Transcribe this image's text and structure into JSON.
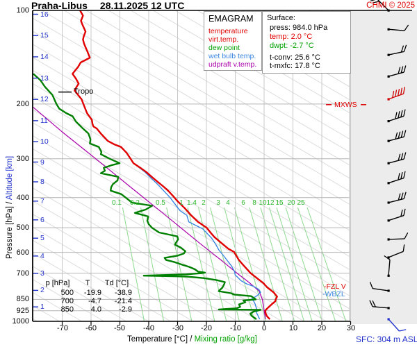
{
  "header": {
    "station": "Praha-Libus",
    "datetime": "28.11.2025 12 UTC",
    "copyright": "CHMI © 2025"
  },
  "legend": {
    "title": "EMAGRAM",
    "items": [
      {
        "label": "temperature",
        "color": "#e00000"
      },
      {
        "label": "virt.temp.",
        "color": "#e00000"
      },
      {
        "label": "dew point",
        "color": "#00a000"
      },
      {
        "label": "wet bulb temp.",
        "color": "#3a85e0"
      },
      {
        "label": "udpraft v.temp.",
        "color": "#aa00aa"
      }
    ]
  },
  "surface_panel": {
    "title": "Surface:",
    "press_label": "press:",
    "press_value": "984.0 hPa",
    "temp_label": "temp:",
    "temp_value": "2.0 °C",
    "dwpt_label": "dwpt:",
    "dwpt_value": "-2.7 °C",
    "tconv_label": "t-conv:",
    "tconv_value": "25.6 °C",
    "tmxfc_label": "t-mxfc:",
    "tmxfc_value": "17.8 °C"
  },
  "markers": {
    "tropo": "Tropo",
    "mxws": "MXWS",
    "fzl": "-FZL V",
    "wbzl": "-WBZL",
    "sfc": "SFC: 304 m ASL"
  },
  "table": {
    "headers": [
      "p [hPa]",
      "T",
      "Td [°C]"
    ],
    "rows": [
      [
        "500",
        "-19.9",
        "-38.9"
      ],
      [
        "700",
        "-4.7",
        "-21.4"
      ],
      [
        "850",
        "4.0",
        "-2.9"
      ]
    ]
  },
  "axes": {
    "x_label": "Temperature [°C]",
    "sep": "/",
    "x_label_green": "Mixing ratio [g/kg]",
    "y_label": "Pressure [hPa]",
    "y_label_blue": "Altitude [km]",
    "pressure_ticks": [
      100,
      200,
      300,
      400,
      500,
      600,
      700,
      850,
      925,
      1000
    ],
    "temp_ticks": [
      -70,
      -60,
      -50,
      -40,
      -30,
      -20,
      -10,
      0,
      10,
      20,
      30
    ],
    "altitude_ticks_km": [
      1,
      2,
      3,
      4,
      5,
      6,
      7,
      8,
      9,
      10,
      11,
      12,
      13,
      14,
      15,
      16
    ]
  },
  "chart_data": {
    "type": "line",
    "subtype": "emagram-sounding",
    "x_unit": "°C",
    "y_unit": "hPa",
    "y_scale": "log",
    "x_range_at_axis": [
      -80,
      30
    ],
    "pressure_range": [
      100,
      1000
    ],
    "tropopause_hpa": 183,
    "mxws_hpa": 201,
    "fzl_hpa": 752,
    "wbzl_hpa": 800,
    "mixing_ratio_lines_gkg": [
      0.1,
      0.2,
      0.5,
      1,
      1.4,
      2,
      3,
      4,
      6,
      8,
      10,
      12,
      15,
      20,
      25
    ],
    "series": [
      {
        "name": "temperature",
        "color": "#e00000",
        "width": 2.4,
        "points": [
          [
            100,
            -63.8
          ],
          [
            104,
            -62.8
          ],
          [
            108,
            -63.5
          ],
          [
            111,
            -63.0
          ],
          [
            117,
            -61.9
          ],
          [
            121,
            -62.5
          ],
          [
            124,
            -62.8
          ],
          [
            128,
            -62.4
          ],
          [
            132,
            -61.8
          ],
          [
            136,
            -61.2
          ],
          [
            142,
            -60.4
          ],
          [
            147,
            -63.6
          ],
          [
            152,
            -64.5
          ],
          [
            156,
            -65.5
          ],
          [
            160,
            -66.4
          ],
          [
            166,
            -65.2
          ],
          [
            172,
            -64.3
          ],
          [
            176,
            -65.0
          ],
          [
            181,
            -65.7
          ],
          [
            187,
            -64.5
          ],
          [
            193,
            -63.3
          ],
          [
            204,
            -62.3
          ],
          [
            214,
            -61.4
          ],
          [
            225,
            -59.7
          ],
          [
            232,
            -59.5
          ],
          [
            236,
            -59.2
          ],
          [
            240,
            -58.0
          ],
          [
            249,
            -56.6
          ],
          [
            263,
            -54.2
          ],
          [
            270,
            -51.8
          ],
          [
            275,
            -49.6
          ],
          [
            287,
            -47.7
          ],
          [
            298,
            -46.5
          ],
          [
            310,
            -45.3
          ],
          [
            321,
            -42.9
          ],
          [
            330,
            -41.0
          ],
          [
            344,
            -38.8
          ],
          [
            356,
            -36.9
          ],
          [
            368,
            -35.0
          ],
          [
            380,
            -33.3
          ],
          [
            395,
            -31.6
          ],
          [
            410,
            -30.1
          ],
          [
            432,
            -27.6
          ],
          [
            456,
            -25.3
          ],
          [
            479,
            -22.9
          ],
          [
            500,
            -19.9
          ],
          [
            518,
            -18.6
          ],
          [
            536,
            -17.2
          ],
          [
            560,
            -14.8
          ],
          [
            584,
            -12.4
          ],
          [
            598,
            -10.4
          ],
          [
            616,
            -9.6
          ],
          [
            634,
            -8.8
          ],
          [
            650,
            -7.8
          ],
          [
            666,
            -6.8
          ],
          [
            683,
            -5.7
          ],
          [
            700,
            -4.7
          ],
          [
            726,
            -2.5
          ],
          [
            753,
            -0.3
          ],
          [
            778,
            1.1
          ],
          [
            807,
            3.3
          ],
          [
            833,
            4.5
          ],
          [
            850,
            4.0
          ],
          [
            862,
            3.9
          ],
          [
            876,
            3.0
          ],
          [
            891,
            2.1
          ],
          [
            907,
            1.2
          ],
          [
            923,
            0.4
          ],
          [
            940,
            0.5
          ],
          [
            960,
            0.9
          ],
          [
            972,
            1.4
          ],
          [
            984,
            2.0
          ]
        ]
      },
      {
        "name": "dew_point",
        "color": "#008000",
        "width": 2.4,
        "points": [
          [
            160,
            -80
          ],
          [
            168,
            -77.5
          ],
          [
            176,
            -76
          ],
          [
            187,
            -73.4
          ],
          [
            200,
            -72
          ],
          [
            207,
            -71
          ],
          [
            214,
            -68.6
          ],
          [
            219,
            -66.4
          ],
          [
            228,
            -65.2
          ],
          [
            240,
            -62.8
          ],
          [
            249,
            -60.9
          ],
          [
            260,
            -60.2
          ],
          [
            268,
            -60.4
          ],
          [
            275,
            -57.3
          ],
          [
            285,
            -56.4
          ],
          [
            290,
            -56.6
          ],
          [
            300,
            -53.5
          ],
          [
            310,
            -50.1
          ],
          [
            315,
            -53
          ],
          [
            321,
            -55.6
          ],
          [
            328,
            -55.2
          ],
          [
            334,
            -56.6
          ],
          [
            343,
            -50.6
          ],
          [
            352,
            -50.8
          ],
          [
            362,
            -52.4
          ],
          [
            370,
            -53.0
          ],
          [
            380,
            -53.2
          ],
          [
            390,
            -49.5
          ],
          [
            400,
            -48.0
          ],
          [
            415,
            -45.8
          ],
          [
            425,
            -38.8
          ],
          [
            437,
            -41
          ],
          [
            448,
            -44.8
          ],
          [
            460,
            -40.2
          ],
          [
            475,
            -40.5
          ],
          [
            487,
            -40.0
          ],
          [
            500,
            -38.9
          ],
          [
            510,
            -37.5
          ],
          [
            518,
            -36.4
          ],
          [
            526,
            -33
          ],
          [
            533,
            -30.1
          ],
          [
            545,
            -29.8
          ],
          [
            556,
            -30.4
          ],
          [
            567,
            -30.9
          ],
          [
            580,
            -28.8
          ],
          [
            595,
            -27.3
          ],
          [
            605,
            -27.8
          ],
          [
            615,
            -30
          ],
          [
            625,
            -34.5
          ],
          [
            635,
            -34
          ],
          [
            645,
            -31
          ],
          [
            657,
            -28.5
          ],
          [
            668,
            -26
          ],
          [
            680,
            -24
          ],
          [
            692,
            -22.9
          ],
          [
            697,
            -20.5
          ],
          [
            700,
            -21.4
          ],
          [
            706,
            -27
          ],
          [
            713,
            -41.7
          ],
          [
            718,
            -27
          ],
          [
            726,
            -21
          ],
          [
            737,
            -16.5
          ],
          [
            748,
            -13.6
          ],
          [
            762,
            -13.9
          ],
          [
            780,
            -14.5
          ],
          [
            795,
            -15.5
          ],
          [
            800,
            -15.7
          ],
          [
            812,
            -11.5
          ],
          [
            820,
            -10.4
          ],
          [
            830,
            -4.5
          ],
          [
            850,
            -2.9
          ],
          [
            857,
            -7.2
          ],
          [
            868,
            -6.5
          ],
          [
            882,
            -8.7
          ],
          [
            898,
            -8.3
          ],
          [
            908,
            -9.5
          ],
          [
            916,
            -15.7
          ],
          [
            918,
            -1.2
          ],
          [
            930,
            -3.6
          ],
          [
            945,
            -4.8
          ],
          [
            962,
            -4.2
          ],
          [
            975,
            -3.3
          ],
          [
            984,
            -2.7
          ]
        ]
      },
      {
        "name": "wet_bulb",
        "color": "#3a85e0",
        "width": 1.4,
        "points": [
          [
            310,
            -45.3
          ],
          [
            330,
            -41.5
          ],
          [
            365,
            -36.6
          ],
          [
            400,
            -32.6
          ],
          [
            440,
            -29.2
          ],
          [
            456,
            -26.8
          ],
          [
            479,
            -26.1
          ],
          [
            504,
            -21.3
          ],
          [
            540,
            -18.2
          ],
          [
            565,
            -16.8
          ],
          [
            589,
            -15.7
          ],
          [
            628,
            -13.3
          ],
          [
            660,
            -11.5
          ],
          [
            690,
            -10.3
          ],
          [
            710,
            -10.0
          ],
          [
            721,
            -9.2
          ],
          [
            740,
            -8.0
          ],
          [
            758,
            -6.0
          ],
          [
            772,
            -3.6
          ],
          [
            790,
            -1.8
          ],
          [
            807,
            -1.2
          ],
          [
            827,
            -2.4
          ],
          [
            847,
            -4.3
          ],
          [
            862,
            -3.6
          ],
          [
            880,
            -3.1
          ],
          [
            900,
            -2.8
          ],
          [
            920,
            -2.4
          ],
          [
            940,
            -2.6
          ],
          [
            955,
            -2.2
          ],
          [
            970,
            -1.9
          ],
          [
            984,
            -1.5
          ]
        ]
      },
      {
        "name": "updraft_virt_temp",
        "color": "#aa00aa",
        "width": 1.2,
        "points": [
          [
            205,
            -80
          ],
          [
            246,
            -70
          ],
          [
            302,
            -58
          ],
          [
            370,
            -46.3
          ],
          [
            456,
            -34.2
          ],
          [
            560,
            -22.4
          ],
          [
            640,
            -14.5
          ],
          [
            700,
            -9.4
          ],
          [
            750,
            -5.2
          ],
          [
            800,
            -1.7
          ],
          [
            850,
            -0.6
          ],
          [
            900,
            -0.2
          ],
          [
            945,
            0.2
          ],
          [
            984,
            0.5
          ]
        ]
      }
    ],
    "winds": [
      {
        "p": 100,
        "angle": -135,
        "feathers": 2,
        "color": "#000000"
      },
      {
        "p": 115,
        "angle": 5,
        "feathers": 1,
        "color": "#000000"
      },
      {
        "p": 139,
        "angle": -12,
        "feathers": 2,
        "color": "#000000"
      },
      {
        "p": 163,
        "angle": -15,
        "feathers": 3,
        "color": "#000000"
      },
      {
        "p": 193,
        "angle": -20,
        "feathers": 5,
        "color": "#cc0000"
      },
      {
        "p": 227,
        "angle": -18,
        "feathers": 4,
        "color": "#000000"
      },
      {
        "p": 263,
        "angle": -15,
        "feathers": 4,
        "color": "#000000"
      },
      {
        "p": 310,
        "angle": -15,
        "feathers": 3,
        "color": "#000000"
      },
      {
        "p": 359,
        "angle": -18,
        "feathers": 3,
        "color": "#000000"
      },
      {
        "p": 415,
        "angle": -14,
        "feathers": 3,
        "color": "#000000"
      },
      {
        "p": 474,
        "angle": -18,
        "feathers": 2,
        "color": "#000000"
      },
      {
        "p": 545,
        "angle": -2,
        "feathers": 1,
        "color": "#000000"
      },
      {
        "p": 623,
        "angle": -22,
        "feathers": 1,
        "color": "#000000"
      },
      {
        "p": 713,
        "angle": -85,
        "feathers": 1,
        "color": "#000000"
      },
      {
        "p": 797,
        "angle": 188,
        "feathers": 1,
        "color": "#000000"
      },
      {
        "p": 906,
        "angle": 185,
        "feathers": 2,
        "color": "#000000"
      },
      {
        "p": 984,
        "angle": 48,
        "feathers": 1,
        "color": "#2233cc"
      }
    ]
  }
}
